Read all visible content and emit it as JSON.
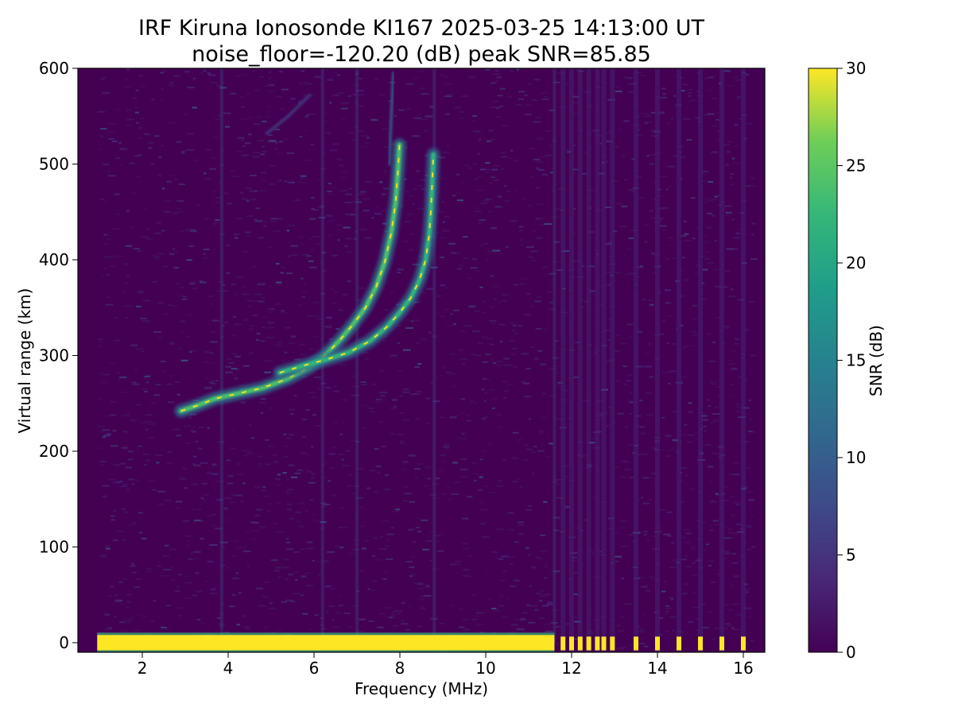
{
  "chart_data": {
    "type": "heatmap",
    "title": "IRF Kiruna Ionosonde KI167 2025-03-25 14:13:00  UT",
    "subtitle": "noise_floor=-120.20 (dB) peak SNR=85.85",
    "xlabel": "Frequency (MHz)",
    "ylabel": "Virtual range (km)",
    "xlim": [
      0.5,
      16.5
    ],
    "ylim": [
      -10,
      600
    ],
    "xticks": [
      2,
      4,
      6,
      8,
      10,
      12,
      14,
      16
    ],
    "yticks": [
      0,
      100,
      200,
      300,
      400,
      500,
      600
    ],
    "grid": false,
    "colormap": "viridis",
    "colorbar": {
      "label": "SNR (dB)",
      "range": [
        0,
        30
      ],
      "ticks": [
        0,
        5,
        10,
        15,
        20,
        25,
        30
      ]
    },
    "data_coverage_mhz": [
      0.95,
      16.2
    ],
    "ground_echo_band": {
      "range_km": [
        -8,
        8
      ],
      "snr_db": 30,
      "continuous_to_mhz": 11.6,
      "discrete_mhz": [
        11.8,
        12.0,
        12.2,
        12.4,
        12.6,
        12.75,
        12.95,
        13.5,
        14.0,
        14.5,
        15.0,
        15.5,
        16.0
      ]
    },
    "traces": [
      {
        "mode": "O",
        "points": [
          [
            2.9,
            242
          ],
          [
            3.3,
            248
          ],
          [
            3.7,
            255
          ],
          [
            4.2,
            260
          ],
          [
            4.8,
            266
          ],
          [
            5.4,
            276
          ],
          [
            5.9,
            288
          ],
          [
            6.3,
            302
          ],
          [
            6.6,
            316
          ],
          [
            6.9,
            332
          ],
          [
            7.2,
            350
          ],
          [
            7.45,
            372
          ],
          [
            7.65,
            398
          ],
          [
            7.8,
            428
          ],
          [
            7.9,
            460
          ],
          [
            7.96,
            495
          ],
          [
            7.99,
            520
          ]
        ],
        "snr_db": 24
      },
      {
        "mode": "X",
        "points": [
          [
            5.2,
            282
          ],
          [
            5.8,
            290
          ],
          [
            6.3,
            296
          ],
          [
            6.8,
            303
          ],
          [
            7.3,
            315
          ],
          [
            7.7,
            330
          ],
          [
            8.0,
            345
          ],
          [
            8.25,
            360
          ],
          [
            8.45,
            378
          ],
          [
            8.6,
            400
          ],
          [
            8.68,
            425
          ],
          [
            8.72,
            450
          ],
          [
            8.75,
            478
          ],
          [
            8.78,
            510
          ]
        ],
        "snr_db": 22
      },
      {
        "mode": "multi-hop",
        "points": [
          [
            7.75,
            500
          ],
          [
            7.8,
            550
          ],
          [
            7.85,
            595
          ]
        ],
        "snr_db": 10
      },
      {
        "mode": "oblique",
        "points": [
          [
            4.9,
            532
          ],
          [
            5.4,
            550
          ],
          [
            5.9,
            572
          ]
        ],
        "snr_db": 6
      }
    ],
    "interference_lines_mhz": [
      3.85,
      6.2,
      7.0,
      8.8,
      11.6
    ]
  }
}
